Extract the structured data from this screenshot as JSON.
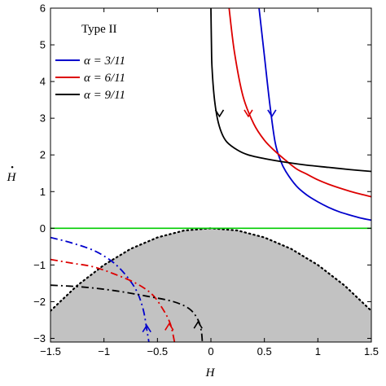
{
  "chart_data": {
    "type": "line",
    "xlabel": "H",
    "ylabel": "H",
    "ylabel_dot": "•",
    "xlim": [
      -1.5,
      1.5
    ],
    "ylim": [
      -3.1,
      6
    ],
    "xticks": [
      -1.5,
      -1,
      -0.5,
      0,
      0.5,
      1,
      1.5
    ],
    "xtick_labels": [
      "−1.5",
      "−1",
      "−0.5",
      "0",
      "0.5",
      "1",
      "1.5"
    ],
    "yticks": [
      -3,
      -2,
      -1,
      0,
      1,
      2,
      3,
      4,
      5,
      6
    ],
    "ytick_labels": [
      "−3",
      "−2",
      "−1",
      "0",
      "1",
      "2",
      "3",
      "4",
      "5",
      "6"
    ],
    "legend": {
      "title": "Type II",
      "placement": "top-left",
      "entries": [
        {
          "label": "α = 3/11",
          "color": "#0000cc"
        },
        {
          "label": "α = 6/11",
          "color": "#dd0000"
        },
        {
          "label": "α = 9/11",
          "color": "#000000"
        }
      ]
    },
    "green_line": {
      "y": 0,
      "color": "#00cc00"
    },
    "shaded_region": {
      "description_color": "#c2c2c2",
      "boundary": [
        [
          -1.5,
          -2.25
        ],
        [
          -1.25,
          -1.56
        ],
        [
          -1.0,
          -1.0
        ],
        [
          -0.75,
          -0.56
        ],
        [
          -0.5,
          -0.25
        ],
        [
          -0.25,
          -0.06
        ],
        [
          0,
          0
        ],
        [
          0.25,
          -0.06
        ],
        [
          0.5,
          -0.25
        ],
        [
          0.75,
          -0.56
        ],
        [
          1.0,
          -1.0
        ],
        [
          1.25,
          -1.56
        ],
        [
          1.5,
          -2.25
        ]
      ]
    },
    "series": [
      {
        "name": "α = 3/11",
        "color": "#0000cc",
        "style": "solid",
        "points": [
          [
            0.45,
            6.0
          ],
          [
            0.5,
            4.7
          ],
          [
            0.55,
            3.4
          ],
          [
            0.6,
            2.35
          ],
          [
            0.65,
            1.85
          ],
          [
            0.7,
            1.55
          ],
          [
            0.8,
            1.15
          ],
          [
            0.9,
            0.9
          ],
          [
            1.0,
            0.72
          ],
          [
            1.1,
            0.57
          ],
          [
            1.2,
            0.45
          ],
          [
            1.3,
            0.36
          ],
          [
            1.4,
            0.28
          ],
          [
            1.5,
            0.22
          ]
        ],
        "arrow": {
          "x": 0.57,
          "y": 3.05,
          "dir": "down"
        }
      },
      {
        "name": "α = 6/11",
        "color": "#dd0000",
        "style": "solid",
        "points": [
          [
            0.17,
            6.0
          ],
          [
            0.22,
            4.8
          ],
          [
            0.3,
            3.6
          ],
          [
            0.4,
            2.85
          ],
          [
            0.5,
            2.4
          ],
          [
            0.6,
            2.1
          ],
          [
            0.7,
            1.85
          ],
          [
            0.8,
            1.62
          ],
          [
            0.9,
            1.47
          ],
          [
            1.0,
            1.32
          ],
          [
            1.1,
            1.2
          ],
          [
            1.2,
            1.1
          ],
          [
            1.3,
            1.01
          ],
          [
            1.4,
            0.93
          ],
          [
            1.5,
            0.86
          ]
        ],
        "arrow": {
          "x": 0.35,
          "y": 3.05,
          "dir": "down"
        }
      },
      {
        "name": "α = 9/11",
        "color": "#000000",
        "style": "solid",
        "points": [
          [
            0.0,
            6.0
          ],
          [
            0.005,
            5.0
          ],
          [
            0.01,
            4.4
          ],
          [
            0.03,
            3.6
          ],
          [
            0.06,
            3.0
          ],
          [
            0.1,
            2.6
          ],
          [
            0.15,
            2.35
          ],
          [
            0.25,
            2.13
          ],
          [
            0.35,
            2.0
          ],
          [
            0.5,
            1.9
          ],
          [
            0.7,
            1.8
          ],
          [
            0.9,
            1.72
          ],
          [
            1.1,
            1.66
          ],
          [
            1.3,
            1.6
          ],
          [
            1.5,
            1.55
          ]
        ],
        "arrow": {
          "x": 0.08,
          "y": 3.05,
          "dir": "down"
        }
      },
      {
        "name": "α = 3/11 (H < 0)",
        "color": "#0000cc",
        "style": "dashdot",
        "points": [
          [
            -1.5,
            -0.25
          ],
          [
            -1.3,
            -0.4
          ],
          [
            -1.1,
            -0.6
          ],
          [
            -0.95,
            -0.85
          ],
          [
            -0.85,
            -1.1
          ],
          [
            -0.75,
            -1.45
          ],
          [
            -0.68,
            -1.8
          ],
          [
            -0.63,
            -2.25
          ],
          [
            -0.6,
            -2.75
          ],
          [
            -0.58,
            -3.1
          ]
        ],
        "arrow": {
          "x": -0.6,
          "y": -2.65,
          "dir": "up"
        }
      },
      {
        "name": "α = 6/11 (H < 0)",
        "color": "#dd0000",
        "style": "dashdot",
        "points": [
          [
            -1.5,
            -0.85
          ],
          [
            -1.3,
            -0.95
          ],
          [
            -1.1,
            -1.05
          ],
          [
            -0.9,
            -1.25
          ],
          [
            -0.7,
            -1.5
          ],
          [
            -0.55,
            -1.8
          ],
          [
            -0.45,
            -2.2
          ],
          [
            -0.38,
            -2.6
          ],
          [
            -0.34,
            -3.1
          ]
        ],
        "arrow": {
          "x": -0.39,
          "y": -2.6,
          "dir": "up"
        }
      },
      {
        "name": "α = 9/11 (H < 0)",
        "color": "#000000",
        "style": "dashdot",
        "points": [
          [
            -1.5,
            -1.55
          ],
          [
            -1.2,
            -1.6
          ],
          [
            -0.9,
            -1.7
          ],
          [
            -0.6,
            -1.85
          ],
          [
            -0.35,
            -2.0
          ],
          [
            -0.2,
            -2.2
          ],
          [
            -0.12,
            -2.5
          ],
          [
            -0.09,
            -2.8
          ],
          [
            -0.08,
            -3.1
          ]
        ],
        "arrow": {
          "x": -0.12,
          "y": -2.55,
          "dir": "up"
        }
      }
    ]
  }
}
